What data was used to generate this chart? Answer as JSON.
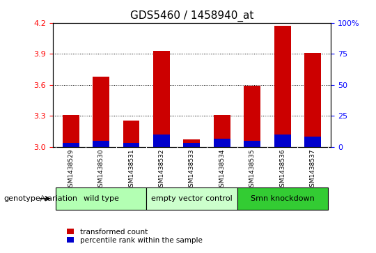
{
  "title": "GDS5460 / 1458940_at",
  "samples": [
    "GSM1438529",
    "GSM1438530",
    "GSM1438531",
    "GSM1438532",
    "GSM1438533",
    "GSM1438534",
    "GSM1438535",
    "GSM1438536",
    "GSM1438537"
  ],
  "red_values": [
    3.31,
    3.68,
    3.25,
    3.93,
    3.07,
    3.31,
    3.59,
    4.17,
    3.91
  ],
  "blue_values": [
    0.04,
    0.06,
    0.04,
    0.12,
    0.04,
    0.08,
    0.06,
    0.12,
    0.1
  ],
  "ymin": 3.0,
  "ymax": 4.2,
  "yticks": [
    3.0,
    3.3,
    3.6,
    3.9,
    4.2
  ],
  "right_yticks": [
    0,
    25,
    50,
    75,
    100
  ],
  "groups": [
    {
      "label": "wild type",
      "start": 0,
      "end": 3,
      "color": "#b3ffb3"
    },
    {
      "label": "empty vector control",
      "start": 3,
      "end": 6,
      "color": "#ccffcc"
    },
    {
      "label": "Smn knockdown",
      "start": 6,
      "end": 9,
      "color": "#33cc33"
    }
  ],
  "red_color": "#cc0000",
  "blue_color": "#0000cc",
  "bar_width": 0.55,
  "background_color": "#ffffff",
  "sample_bg_color": "#cccccc",
  "title_fontsize": 11,
  "legend_label_red": "transformed count",
  "legend_label_blue": "percentile rank within the sample",
  "genotype_label": "genotype/variation"
}
